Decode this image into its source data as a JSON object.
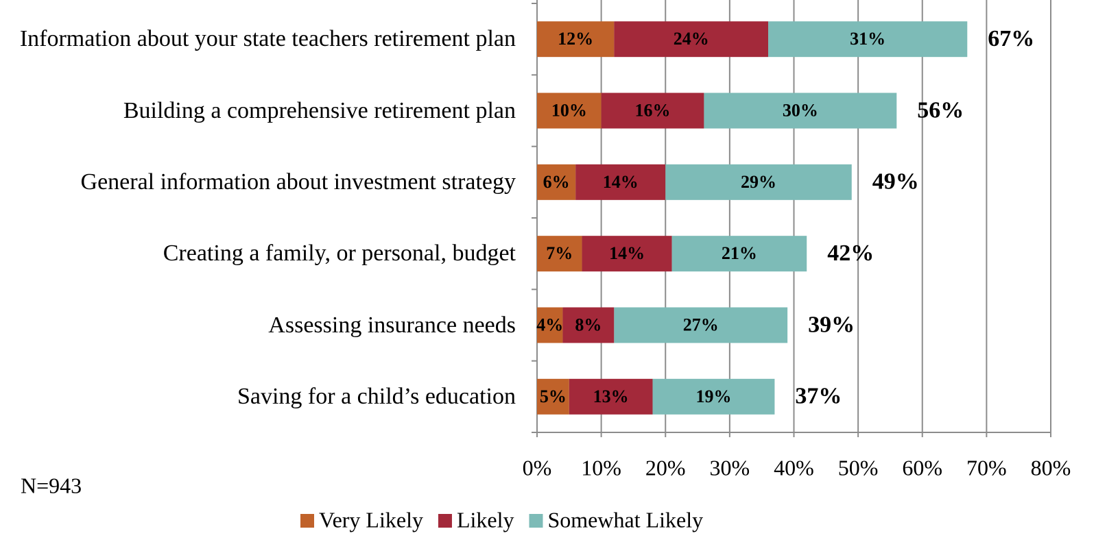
{
  "chart_data": {
    "type": "stacked-barh",
    "categories": [
      "Information about your state teachers retirement plan",
      "Building a comprehensive retirement plan",
      "General information about investment strategy",
      "Creating a family, or personal, budget",
      "Assessing insurance needs",
      "Saving for a child’s education"
    ],
    "series": [
      {
        "name": "Very Likely",
        "color": "#c0622a",
        "values": [
          12,
          10,
          6,
          7,
          4,
          5
        ],
        "value_labels": [
          "12%",
          "10%",
          "6%",
          "7%",
          "4%",
          "5%"
        ]
      },
      {
        "name": "Likely",
        "color": "#a3293a",
        "values": [
          24,
          16,
          14,
          14,
          8,
          13
        ],
        "value_labels": [
          "24%",
          "16%",
          "14%",
          "14%",
          "8%",
          "13%"
        ]
      },
      {
        "name": "Somewhat Likely",
        "color": "#7dbbb7",
        "values": [
          31,
          30,
          29,
          21,
          27,
          19
        ],
        "value_labels": [
          "31%",
          "30%",
          "29%",
          "21%",
          "27%",
          "19%"
        ]
      }
    ],
    "totals": [
      67,
      56,
      49,
      42,
      39,
      37
    ],
    "total_labels": [
      "67%",
      "56%",
      "49%",
      "42%",
      "39%",
      "37%"
    ],
    "xlim": [
      0,
      80
    ],
    "xticks": [
      {
        "value": 0,
        "label": "0%"
      },
      {
        "value": 10,
        "label": "10%"
      },
      {
        "value": 20,
        "label": "20%"
      },
      {
        "value": 30,
        "label": "30%"
      },
      {
        "value": 40,
        "label": "40%"
      },
      {
        "value": 50,
        "label": "50%"
      },
      {
        "value": 60,
        "label": "60%"
      },
      {
        "value": 70,
        "label": "70%"
      },
      {
        "value": 80,
        "label": "80%"
      }
    ],
    "grid": true,
    "legend": "bottom",
    "annotation": "N=943"
  }
}
